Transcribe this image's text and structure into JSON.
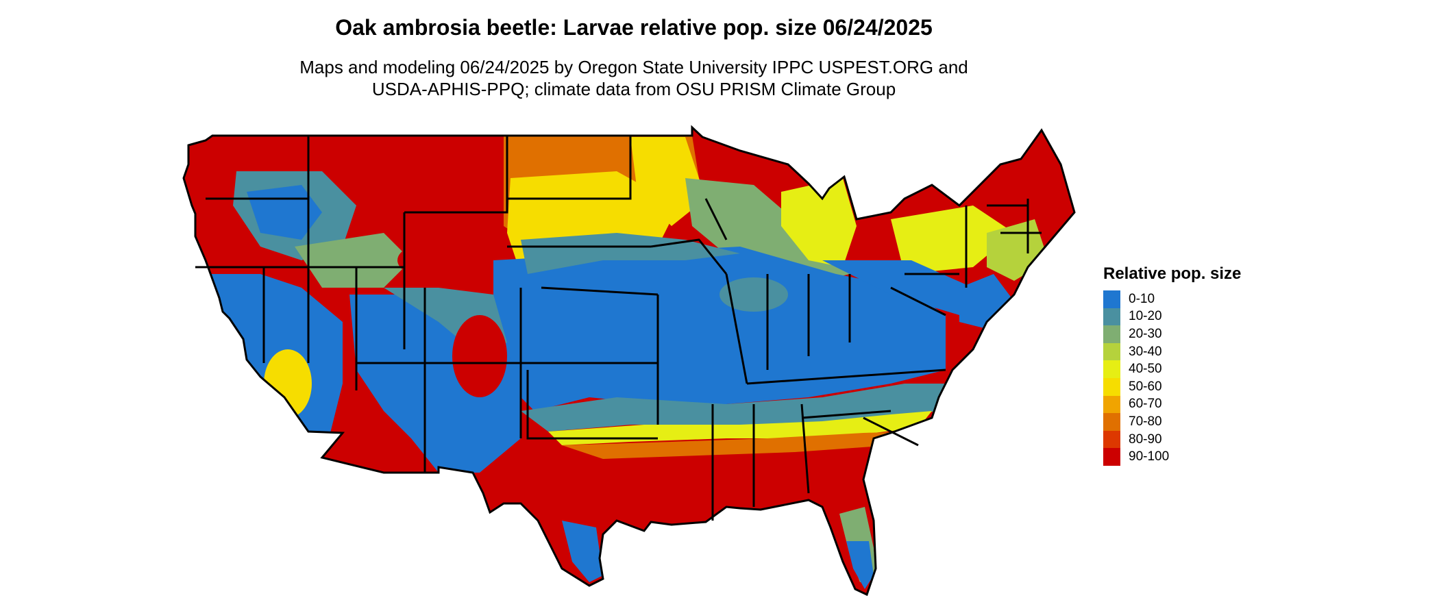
{
  "title": "Oak ambrosia beetle: Larvae relative pop. size 06/24/2025",
  "subtitle_line1": "Maps and modeling 06/24/2025 by Oregon State University IPPC USPEST.ORG and",
  "subtitle_line2": "USDA-APHIS-PPQ; climate data from OSU PRISM Climate Group",
  "legend": {
    "title": "Relative pop. size",
    "classes": [
      {
        "label": "0-10",
        "color": "#1f77d0"
      },
      {
        "label": "10-20",
        "color": "#4a90a0"
      },
      {
        "label": "20-30",
        "color": "#7fae72"
      },
      {
        "label": "30-40",
        "color": "#b5d23c"
      },
      {
        "label": "40-50",
        "color": "#e6ee14"
      },
      {
        "label": "50-60",
        "color": "#f6dd00"
      },
      {
        "label": "60-70",
        "color": "#f0a400"
      },
      {
        "label": "70-80",
        "color": "#e07000"
      },
      {
        "label": "80-90",
        "color": "#dd3800"
      },
      {
        "label": "90-100",
        "color": "#cc0000"
      }
    ]
  }
}
